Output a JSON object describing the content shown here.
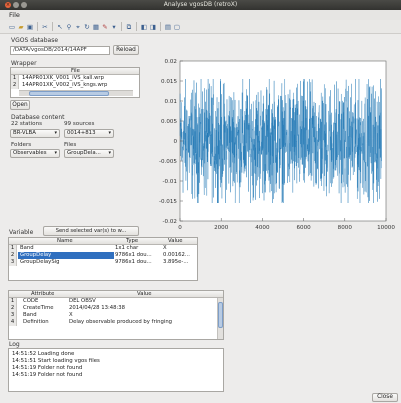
{
  "window": {
    "title": "Analyse vgosDB (retroX)",
    "menu": "File"
  },
  "toolbar": {
    "icons": [
      "new-icon",
      "open-icon",
      "save-icon",
      "cut-icon",
      "link-icon",
      "zoom-icon",
      "pointer-icon",
      "refresh-icon",
      "table-icon",
      "edit-icon",
      "line-icon",
      "brush-icon",
      "copy-icon",
      "panel-icon",
      "panel2-icon",
      "grid-icon",
      "window-icon"
    ]
  },
  "vgosdb": {
    "label": "VGOS database",
    "path": "/DATA/vgosDB/2014/14APF",
    "reload_label": "Reload"
  },
  "wrapper": {
    "label": "Wrapper",
    "header": "File",
    "rows": [
      {
        "num": "1",
        "file": "14APR01XK_V001_iVS_kall.wrp"
      },
      {
        "num": "2",
        "file": "14APR01XK_V002_iVS_kngs.wrp"
      }
    ],
    "open_label": "Open"
  },
  "db_content": {
    "label": "Database content",
    "stations_label": "22 stations",
    "sources_label": "99 sources",
    "station_value": "BR-VLBA",
    "source_value": "0014+813",
    "folders_label": "Folders",
    "files_label": "Files",
    "folder_value": "Observables",
    "file_value": "GroupDela..."
  },
  "variable": {
    "label": "Variable",
    "send_label": "Send selected var(s) to w...",
    "headers": [
      "Name",
      "Type",
      "Value"
    ],
    "rows": [
      {
        "num": "1",
        "name": "Band",
        "type": "1x1 char",
        "value": "X",
        "selected": false
      },
      {
        "num": "2",
        "name": "GroupDelay",
        "type": "9786x1 dou...",
        "value": "0.00162...",
        "selected": true
      },
      {
        "num": "3",
        "name": "GroupDelaySig",
        "type": "9786x1 dou...",
        "value": "3.895e-...",
        "selected": false
      }
    ]
  },
  "attributes": {
    "headers": [
      "Attribute",
      "Value"
    ],
    "rows": [
      {
        "num": "1",
        "attr": "CODE",
        "value": "DEL OBSV"
      },
      {
        "num": "2",
        "attr": "CreateTime",
        "value": "2014/04/28 13:48:38"
      },
      {
        "num": "3",
        "attr": "Band",
        "value": "X"
      },
      {
        "num": "4",
        "attr": "Definition",
        "value": "Delay observable produced by fringing"
      }
    ]
  },
  "log": {
    "label": "Log",
    "lines": [
      "14:51:52 Loading done",
      "14:51:51 Start loading vgos files",
      "14:51:19 Folder not found",
      "14:51:19 Folder not found"
    ],
    "close_label": "Close"
  },
  "chart_data": {
    "type": "line",
    "title": "",
    "xlabel": "",
    "ylabel": "",
    "xlim": [
      0,
      10000
    ],
    "ylim": [
      -0.02,
      0.02
    ],
    "x_ticks": [
      "0",
      "2000",
      "4000",
      "6000",
      "8000",
      "10000"
    ],
    "y_ticks": [
      "0.02",
      "0.015",
      "0.01",
      "0.005",
      "0",
      "-0.005",
      "-0.01",
      "-0.015",
      "-0.02"
    ],
    "series": [
      {
        "points": 9786,
        "style": "dense noise",
        "color": "#1f77b4",
        "envelope_upper": 0.0155,
        "envelope_lower": -0.0155
      }
    ],
    "grid": false
  }
}
